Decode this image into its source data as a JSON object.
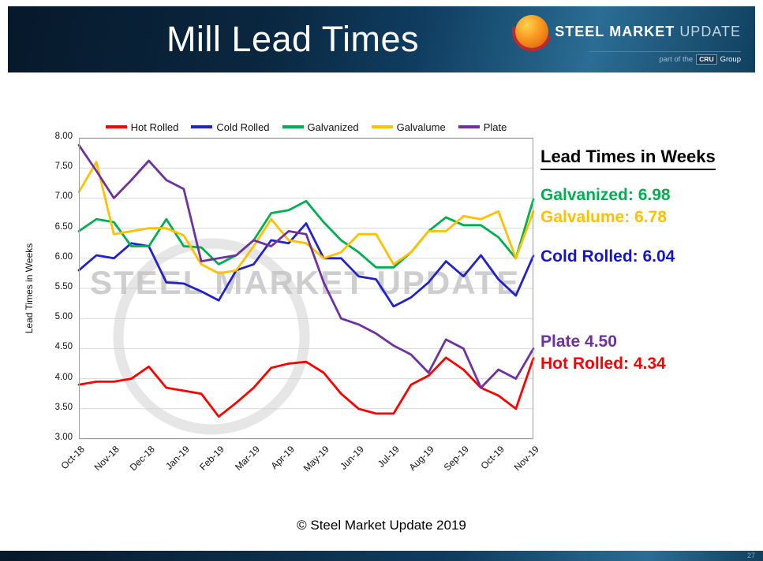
{
  "header": {
    "title": "Mill Lead Times",
    "logo": {
      "steel": "STEEL",
      "market": "MARKET",
      "update": "UPDATE",
      "tagline_pre": "part of the",
      "tagline_cru": "CRU",
      "tagline_post": "Group"
    }
  },
  "chart_data": {
    "type": "line",
    "title": "Mill Lead Times",
    "xlabel": "",
    "ylabel": "Lead Times in Weeks",
    "ylim": [
      3.0,
      8.0
    ],
    "ytick_step": 0.5,
    "grid": true,
    "legend_position": "top",
    "y_tick_labels": [
      "8.00",
      "7.50",
      "7.00",
      "6.50",
      "6.00",
      "5.50",
      "5.00",
      "4.50",
      "4.00",
      "3.50",
      "3.00"
    ],
    "x_tick_labels": [
      "Oct-18",
      "Nov-18",
      "Dec-18",
      "Jan-19",
      "Feb-19",
      "Mar-19",
      "Apr-19",
      "May-19",
      "Jun-19",
      "Jul-19",
      "Aug-19",
      "Sep-19",
      "Oct-19",
      "Nov-19"
    ],
    "series": [
      {
        "name": "Hot Rolled",
        "color": "#ff0000",
        "values": [
          3.9,
          3.95,
          3.95,
          4.0,
          4.2,
          3.85,
          3.8,
          3.75,
          3.37,
          3.6,
          3.85,
          4.18,
          4.25,
          4.28,
          4.1,
          3.75,
          3.5,
          3.42,
          3.42,
          3.9,
          4.05,
          4.35,
          4.15,
          3.85,
          3.72,
          3.5,
          4.34
        ]
      },
      {
        "name": "Cold Rolled",
        "color": "#2222cc",
        "values": [
          5.8,
          6.05,
          6.0,
          6.25,
          6.2,
          5.6,
          5.58,
          5.45,
          5.3,
          5.8,
          5.9,
          6.3,
          6.25,
          6.58,
          6.0,
          6.0,
          5.7,
          5.65,
          5.2,
          5.35,
          5.6,
          5.95,
          5.7,
          6.05,
          5.65,
          5.38,
          6.04
        ]
      },
      {
        "name": "Galvanized",
        "color": "#00b050",
        "values": [
          6.45,
          6.65,
          6.6,
          6.2,
          6.2,
          6.65,
          6.2,
          6.18,
          5.9,
          6.05,
          6.3,
          6.75,
          6.8,
          6.95,
          6.6,
          6.3,
          6.1,
          5.85,
          5.85,
          6.1,
          6.45,
          6.68,
          6.55,
          6.55,
          6.35,
          6.0,
          6.98
        ]
      },
      {
        "name": "Galvalume",
        "color": "#ffc000",
        "values": [
          7.1,
          7.6,
          6.4,
          6.45,
          6.5,
          6.5,
          6.38,
          5.9,
          5.75,
          5.8,
          6.2,
          6.65,
          6.3,
          6.25,
          6.0,
          6.1,
          6.4,
          6.4,
          5.9,
          6.1,
          6.45,
          6.45,
          6.7,
          6.65,
          6.78,
          6.0,
          6.78
        ]
      },
      {
        "name": "Plate",
        "color": "#7030a0",
        "values": [
          7.88,
          7.45,
          7.0,
          7.3,
          7.62,
          7.3,
          7.15,
          5.95,
          6.0,
          6.05,
          6.3,
          6.2,
          6.45,
          6.4,
          5.6,
          5.0,
          4.9,
          4.75,
          4.55,
          4.4,
          4.1,
          4.65,
          4.5,
          3.85,
          4.15,
          4.0,
          4.5
        ]
      }
    ]
  },
  "annotations": {
    "heading": "Lead Times in Weeks",
    "items": [
      {
        "id": "galvanized",
        "label": "Galvanized: 6.98",
        "color": "#00b050"
      },
      {
        "id": "galvalume",
        "label": "Galvalume: 6.78",
        "color": "#ffc000"
      },
      {
        "id": "cold_rolled",
        "label": "Cold Rolled: 6.04",
        "color": "#1515cc"
      },
      {
        "id": "plate",
        "label": "Plate 4.50",
        "color": "#7030a0"
      },
      {
        "id": "hot_rolled",
        "label": "Hot Rolled: 4.34",
        "color": "#ff0000"
      }
    ]
  },
  "watermark": {
    "text": "STEEL MARKET UPDATE"
  },
  "footer": {
    "copyright": "© Steel Market Update 2019",
    "page_number": "27"
  },
  "colors": {
    "banner_dark": "#07192b",
    "banner_light": "#2b6d94",
    "grid": "#d9d9d9",
    "watermark": "#c2c2c2"
  }
}
